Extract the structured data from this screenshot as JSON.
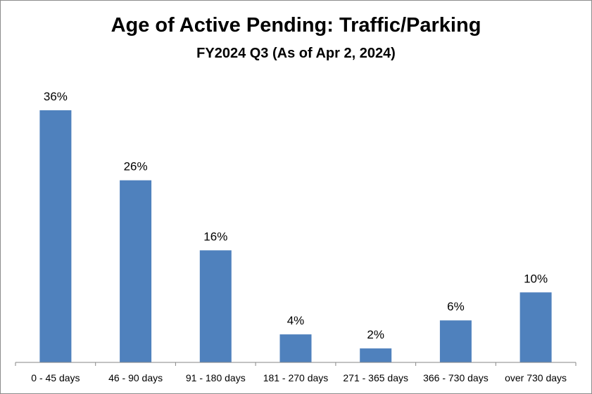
{
  "chart_data": {
    "type": "bar",
    "title": "Age of Active Pending: Traffic/Parking",
    "subtitle": "FY2024 Q3 (As of Apr 2, 2024)",
    "categories": [
      "0 - 45 days",
      "46 - 90 days",
      "91 - 180 days",
      "181 - 270 days",
      "271 - 365 days",
      "366 - 730 days",
      "over 730 days"
    ],
    "values": [
      36,
      26,
      16,
      4,
      2,
      6,
      10
    ],
    "data_labels": [
      "36%",
      "26%",
      "16%",
      "4%",
      "2%",
      "6%",
      "10%"
    ],
    "xlabel": "",
    "ylabel": "",
    "ylim": [
      0,
      36
    ],
    "grid": false,
    "legend": "none",
    "bar_color": "#4f81bd",
    "axis_color": "#868686"
  }
}
